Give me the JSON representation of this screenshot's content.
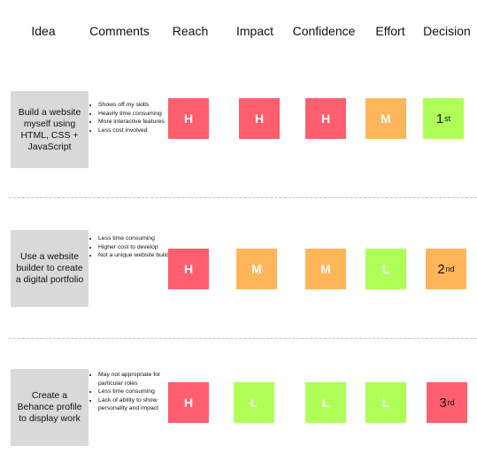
{
  "headers": [
    "Idea",
    "Comments",
    "Reach",
    "Impact",
    "Confidence",
    "Effort",
    "Decision"
  ],
  "colors": {
    "H": "#ff5e6e",
    "M": "#ffb65a",
    "L": "#b0ff59",
    "idea_bg": "#d9d9d9"
  },
  "rows": [
    {
      "idea": "Build a website myself using HTML, CSS + JavaScript",
      "comments": [
        "Shows off my skills",
        "Heavily time consuming",
        "More interactive features",
        "Less cost involved"
      ],
      "reach": "H",
      "impact": "H",
      "confidence": "H",
      "effort": "M",
      "decision": {
        "rank": "1",
        "suffix": "st",
        "color": "L"
      }
    },
    {
      "idea": "Use a website builder to create a digital portfolio",
      "comments": [
        "Less time consuming",
        "Higher cost to develop",
        "Not a unique website build"
      ],
      "reach": "H",
      "impact": "M",
      "confidence": "M",
      "effort": "L",
      "decision": {
        "rank": "2",
        "suffix": "nd",
        "color": "M"
      }
    },
    {
      "idea": "Create a Behance profile to display work",
      "comments": [
        "May not appropriate for particular roles",
        "Less time consuming",
        "Lack of ability to show personality and impact"
      ],
      "reach": "H",
      "impact": "L",
      "confidence": "L",
      "effort": "L",
      "decision": {
        "rank": "3",
        "suffix": "rd",
        "color": "H"
      }
    }
  ]
}
